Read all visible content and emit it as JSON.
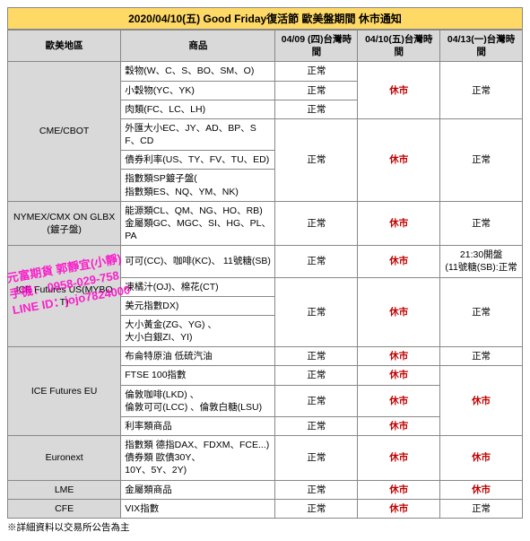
{
  "title": "2020/04/10(五) Good Friday復活節 歐美盤期間 休市通知",
  "headers": [
    "歐美地區",
    "商品",
    "04/09 (四)台灣時間",
    "04/10(五)台灣時間",
    "04/13(一)台灣時間"
  ],
  "normal": "正常",
  "closed": "休市",
  "watermark": {
    "l1": "元富期貨 郭靜宜(小靜)",
    "l2": "手機： 0958-029-758",
    "l3": "LINE ID：jojo7824000"
  },
  "footnote": "※詳細資料以交易所公告為主",
  "regions": {
    "cme": "CME/CBOT",
    "nymex": "NYMEX/CMX ON GLBX(鍍子盤)",
    "iceus": "ICE Futures US(MYBOT)",
    "iceeu": "ICE Futures  EU",
    "euronext": "Euronext",
    "lme": "LME",
    "cfe": "CFE"
  },
  "products": {
    "cme1": "穀物(W、C、S、BO、SM、O)",
    "cme2": "小穀物(YC、YK)",
    "cme3": "肉類(FC、LC、LH)",
    "cme4": "外匯大小EC、JY、AD、BP、SF、CD",
    "cme5": "債券利率(US、TY、FV、TU、ED)",
    "cme6": "指數類SP鍍子盤(\n指數類ES、NQ、YM、NK)",
    "nymex1": "能源類CL、QM、NG、HO、RB)\n金屬類GC、MGC、SI、HG、PL、PA",
    "iceus1": "可可(CC)、咖啡(KC)、 11號糖(SB)",
    "iceus2": "凍橘汁(OJ)、棉花(CT)",
    "iceus3": "美元指數DX)",
    "iceus4": "大小黃金(ZG、YG) 、\n大小白銀ZI、YI)",
    "iceeu1": "布侖特原油 低硫汽油",
    "iceeu2": "FTSE 100指數",
    "iceeu3": "倫敦咖啡(LKD) 、\n倫敦可可(LCC) 、倫敦白糖(LSU)",
    "iceeu4": "利率類商品",
    "eur1": "指數類 德指DAX、FDXM、FCE...)\n債券類 歐債30Y、\n10Y、5Y、2Y)",
    "lme1": "金屬類商品",
    "cfe1": "VIX指數"
  },
  "special": {
    "iceus_mon": "21:30開盤\n(11號糖(SB):正常"
  }
}
